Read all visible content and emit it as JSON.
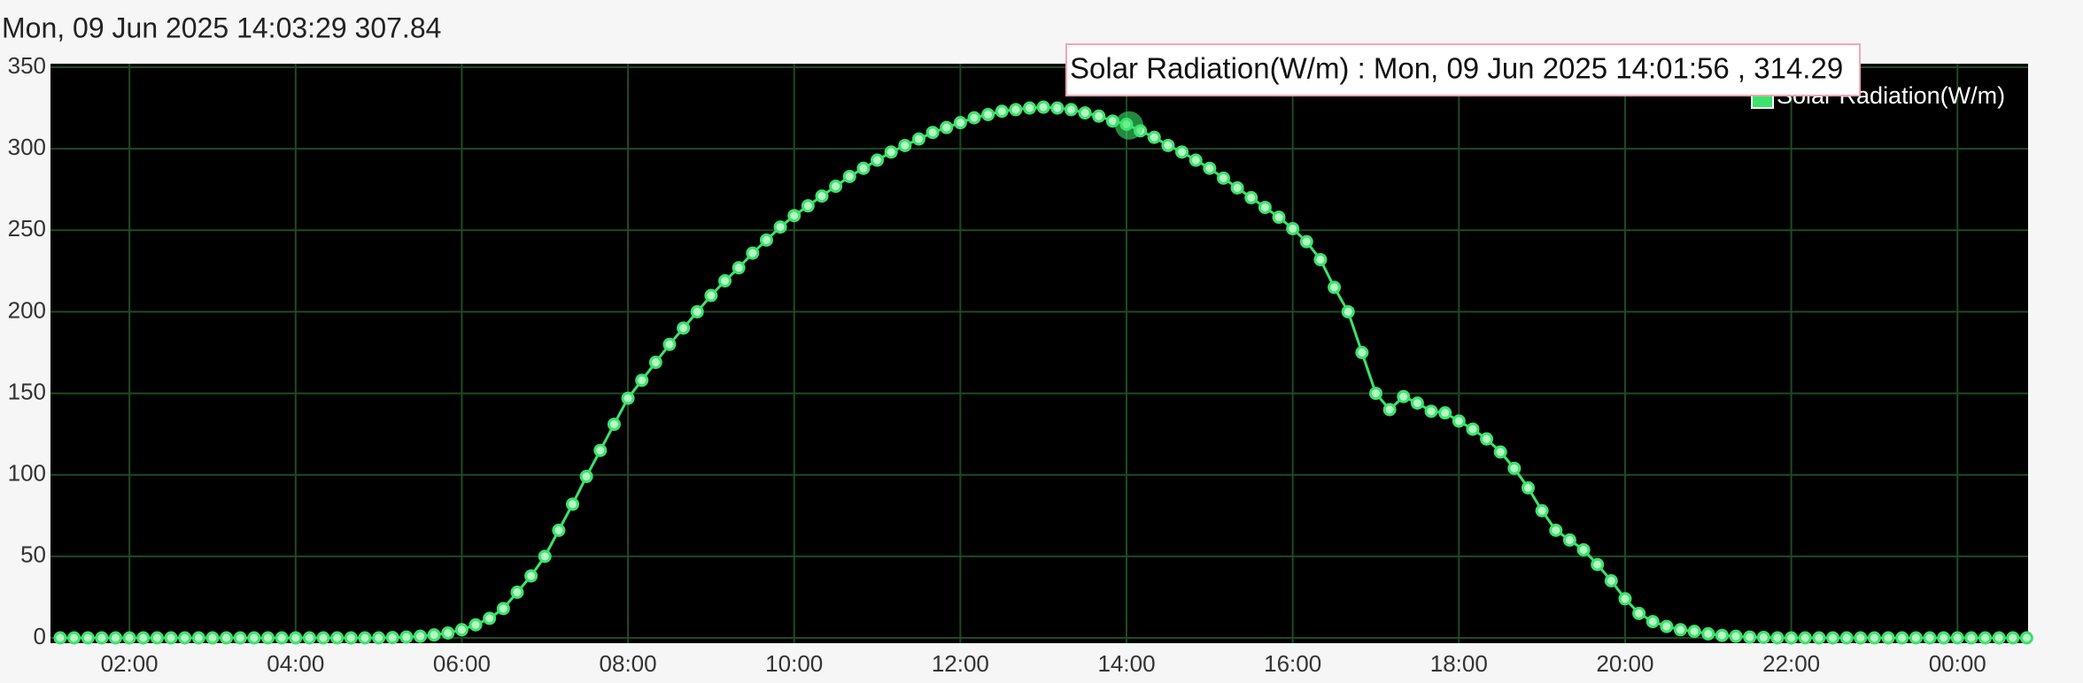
{
  "header": "Mon, 09 Jun 2025 14:03:29 307.84",
  "chart_data": {
    "type": "line",
    "x": [
      70,
      80,
      90,
      100,
      110,
      120,
      130,
      140,
      150,
      160,
      170,
      180,
      190,
      200,
      210,
      220,
      230,
      240,
      250,
      260,
      270,
      280,
      290,
      300,
      310,
      320,
      330,
      340,
      350,
      360,
      370,
      380,
      390,
      400,
      410,
      420,
      430,
      440,
      450,
      460,
      470,
      480,
      490,
      500,
      510,
      520,
      530,
      540,
      550,
      560,
      570,
      580,
      590,
      600,
      610,
      620,
      630,
      640,
      650,
      660,
      670,
      680,
      690,
      700,
      710,
      720,
      730,
      740,
      750,
      760,
      770,
      780,
      790,
      800,
      810,
      820,
      830,
      840,
      850,
      860,
      870,
      880,
      890,
      900,
      910,
      920,
      930,
      940,
      950,
      960,
      970,
      980,
      990,
      1000,
      1010,
      1020,
      1030,
      1040,
      1050,
      1060,
      1070,
      1080,
      1090,
      1100,
      1110,
      1120,
      1130,
      1140,
      1150,
      1160,
      1170,
      1180,
      1190,
      1200,
      1210,
      1220,
      1230,
      1240,
      1250,
      1260,
      1270,
      1280,
      1290,
      1300,
      1310,
      1320,
      1330,
      1340,
      1350,
      1360,
      1370,
      1380,
      1390,
      1400,
      1410,
      1420,
      1430,
      1440,
      1450,
      1460,
      1470,
      1480,
      1490
    ],
    "series": [
      {
        "name": "Solar Radiation(W/m)",
        "color": "#3be36a",
        "values": [
          0,
          0,
          0,
          0,
          0,
          0,
          0,
          0,
          0,
          0,
          0,
          0,
          0,
          0,
          0,
          0,
          0,
          0,
          0,
          0,
          0,
          0,
          0,
          0,
          0.2,
          0.5,
          1,
          1.8,
          3,
          5,
          8,
          12,
          18,
          28,
          38,
          50,
          66,
          82,
          99,
          115,
          131,
          147,
          158,
          169,
          180,
          190,
          200,
          210,
          219,
          227,
          236,
          244,
          252,
          259,
          265,
          271,
          277,
          283,
          288,
          293,
          298,
          302,
          306,
          310,
          313,
          316,
          319,
          321,
          323,
          324,
          325,
          325.5,
          325,
          324,
          322,
          320,
          317,
          315,
          311,
          307,
          302,
          298,
          293,
          288,
          282,
          276,
          270,
          264,
          258,
          251,
          243,
          232,
          215,
          200,
          175,
          150,
          140,
          148,
          144,
          139,
          138,
          133,
          128,
          122,
          114,
          104,
          92,
          78,
          66,
          60,
          54,
          45,
          35,
          24,
          15,
          10,
          7,
          5,
          4,
          2.5,
          1.5,
          1,
          0.5,
          0.3,
          0,
          0,
          0,
          0,
          0,
          0,
          0,
          0,
          0,
          0,
          0,
          0,
          0,
          0,
          0,
          0,
          0,
          0,
          0
        ]
      }
    ],
    "xlim": [
      63,
      1491
    ],
    "xticks": [
      {
        "value": 120,
        "label": "02:00"
      },
      {
        "value": 240,
        "label": "04:00"
      },
      {
        "value": 360,
        "label": "06:00"
      },
      {
        "value": 480,
        "label": "08:00"
      },
      {
        "value": 600,
        "label": "10:00"
      },
      {
        "value": 720,
        "label": "12:00"
      },
      {
        "value": 840,
        "label": "14:00"
      },
      {
        "value": 960,
        "label": "16:00"
      },
      {
        "value": 1080,
        "label": "18:00"
      },
      {
        "value": 1200,
        "label": "20:00"
      },
      {
        "value": 1320,
        "label": "22:00"
      },
      {
        "value": 1440,
        "label": "00:00"
      }
    ],
    "ylim": [
      0,
      350
    ],
    "yticks": [
      0,
      50,
      100,
      150,
      200,
      250,
      300,
      350
    ],
    "grid": true,
    "legend": "top-right",
    "tooltip": {
      "text": "Solar Radiation(W/m) : Mon, 09 Jun 2025 14:01:56 , 314.29",
      "x": 841.93,
      "y": 314.29
    }
  }
}
